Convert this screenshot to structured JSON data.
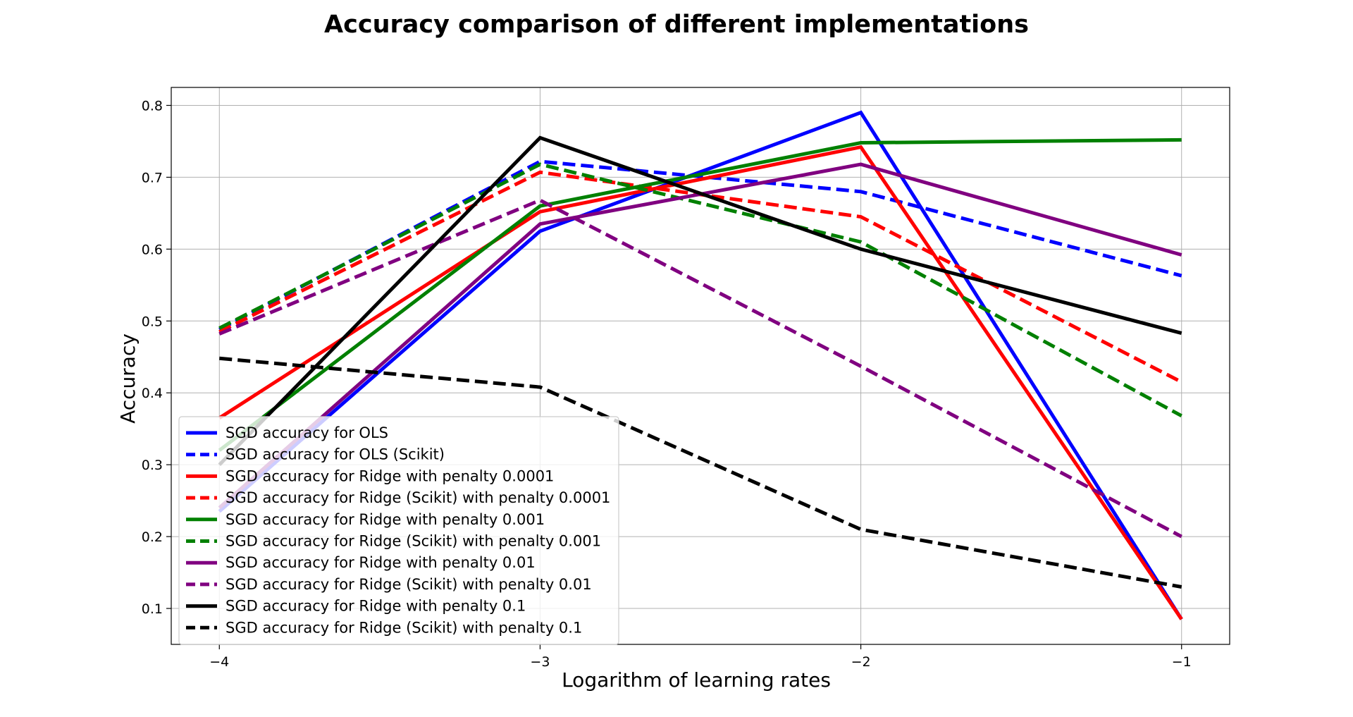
{
  "chart_data": {
    "type": "line",
    "title": "Accuracy comparison of different implementations",
    "xlabel": "Logarithm of learning rates",
    "ylabel": "Accuracy",
    "x": [
      -4,
      -3,
      -2,
      -1
    ],
    "xlim": [
      -4.15,
      -0.85
    ],
    "ylim": [
      0.05,
      0.825
    ],
    "xticks": [
      -4,
      -3,
      -2,
      -1
    ],
    "xtick_labels": [
      "−4",
      "−3",
      "−2",
      "−1"
    ],
    "yticks": [
      0.1,
      0.2,
      0.3,
      0.4,
      0.5,
      0.6,
      0.7,
      0.8
    ],
    "ytick_labels": [
      "0.1",
      "0.2",
      "0.3",
      "0.4",
      "0.5",
      "0.6",
      "0.7",
      "0.8"
    ],
    "grid": true,
    "legend_position": "lower-left",
    "series": [
      {
        "name": "SGD accuracy for OLS",
        "values": [
          0.235,
          0.625,
          0.79,
          0.085
        ],
        "color": "#0000ff",
        "dashed": false
      },
      {
        "name": "SGD accuracy for OLS (Scikit)",
        "values": [
          0.488,
          0.722,
          0.68,
          0.563
        ],
        "color": "#0000ff",
        "dashed": true
      },
      {
        "name": "SGD accuracy for Ridge with penalty 0.0001",
        "values": [
          0.365,
          0.652,
          0.742,
          0.085
        ],
        "color": "#ff0000",
        "dashed": false
      },
      {
        "name": "SGD accuracy for Ridge (Scikit) with penalty 0.0001",
        "values": [
          0.485,
          0.707,
          0.645,
          0.415
        ],
        "color": "#ff0000",
        "dashed": true
      },
      {
        "name": "SGD accuracy for Ridge with penalty 0.001",
        "values": [
          0.32,
          0.66,
          0.748,
          0.752
        ],
        "color": "#008000",
        "dashed": false
      },
      {
        "name": "SGD accuracy for Ridge (Scikit) with penalty 0.001",
        "values": [
          0.49,
          0.718,
          0.61,
          0.368
        ],
        "color": "#008000",
        "dashed": true
      },
      {
        "name": "SGD accuracy for Ridge with penalty 0.01",
        "values": [
          0.24,
          0.635,
          0.718,
          0.592
        ],
        "color": "#800080",
        "dashed": false
      },
      {
        "name": "SGD accuracy for Ridge (Scikit) with penalty 0.01",
        "values": [
          0.482,
          0.668,
          0.437,
          0.2
        ],
        "color": "#800080",
        "dashed": true
      },
      {
        "name": "SGD accuracy for Ridge with penalty 0.1",
        "values": [
          0.3,
          0.755,
          0.6,
          0.483
        ],
        "color": "#000000",
        "dashed": false
      },
      {
        "name": "SGD accuracy for Ridge (Scikit) with penalty 0.1",
        "values": [
          0.448,
          0.408,
          0.21,
          0.13
        ],
        "color": "#000000",
        "dashed": true
      }
    ]
  }
}
